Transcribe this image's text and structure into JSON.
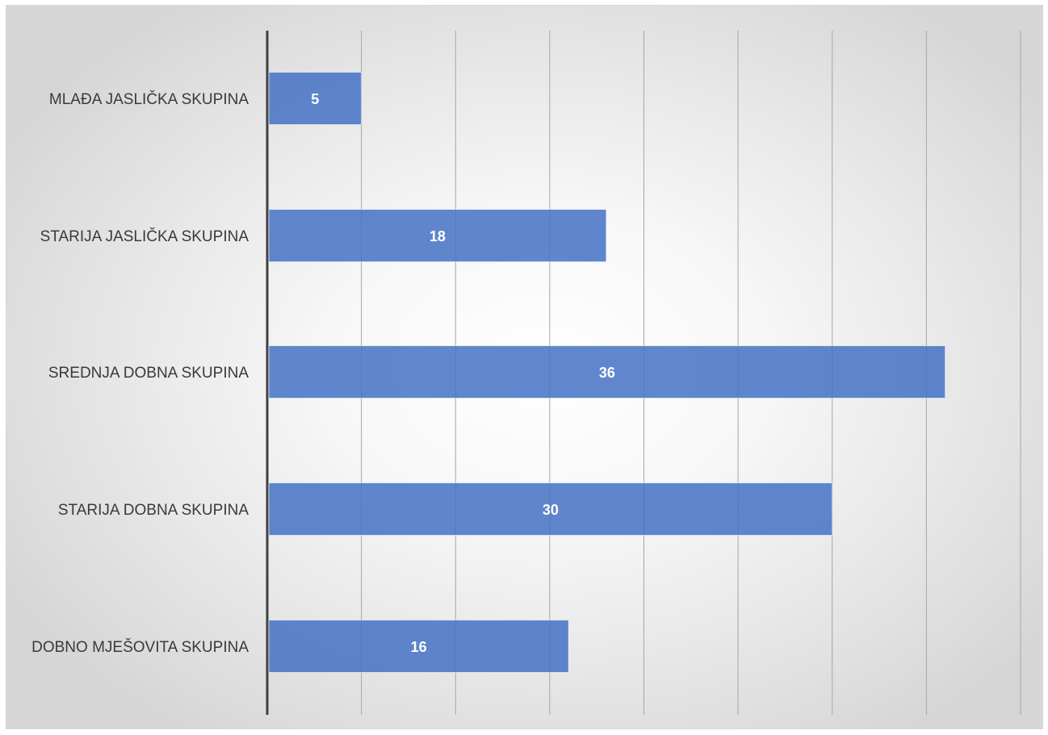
{
  "chart_data": {
    "type": "bar",
    "orientation": "horizontal",
    "categories": [
      "MLAĐA JASLIČKA SKUPINA",
      "STARIJA JASLIČKA SKUPINA",
      "SREDNJA DOBNA SKUPINA",
      "STARIJA DOBNA SKUPINA",
      "DOBNO MJEŠOVITA SKUPINA"
    ],
    "values": [
      5,
      18,
      36,
      30,
      16
    ],
    "xlim": [
      0,
      40
    ],
    "x_grid_step": 5,
    "grid": true,
    "tick_labels_visible": false,
    "legend": "none",
    "bar_color": "#4472c4",
    "data_labels": true
  }
}
